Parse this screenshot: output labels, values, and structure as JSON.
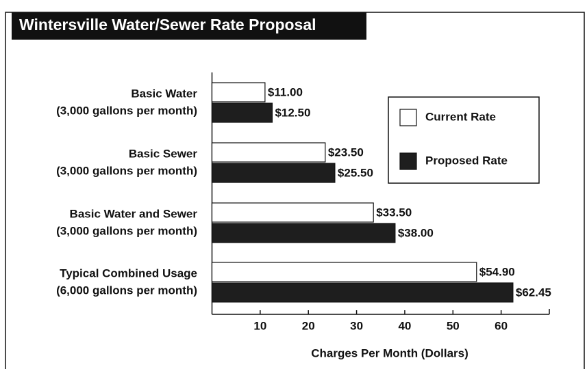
{
  "chart_data": {
    "type": "hbar",
    "title": "Wintersville Water/Sewer Rate Proposal",
    "categories": [
      [
        "Basic Water",
        "(3,000 gallons per month)"
      ],
      [
        "Basic Sewer",
        "(3,000 gallons per month)"
      ],
      [
        "Basic Water and Sewer",
        "(3,000 gallons per month)"
      ],
      [
        "Typical Combined Usage",
        "(6,000 gallons per month)"
      ]
    ],
    "series": [
      {
        "name": "Current Rate",
        "color": "#ffffff",
        "values": [
          11.0,
          23.5,
          33.5,
          54.9
        ],
        "value_labels": [
          "$11.00",
          "$23.50",
          "$33.50",
          "$54.90"
        ]
      },
      {
        "name": "Proposed Rate",
        "color": "#1e1e1e",
        "values": [
          12.5,
          25.5,
          38.0,
          62.45
        ],
        "value_labels": [
          "$12.50",
          "$25.50",
          "$38.00",
          "$62.45"
        ]
      }
    ],
    "xlabel": "Charges Per Month (Dollars)",
    "xlim": [
      0,
      70
    ],
    "xticks": [
      10,
      20,
      30,
      40,
      50,
      60
    ],
    "legend": "upper right"
  }
}
